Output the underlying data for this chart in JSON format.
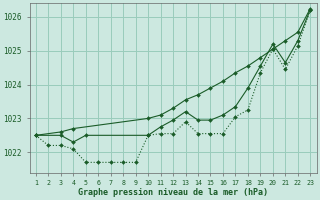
{
  "xlabel": "Graphe pression niveau de la mer (hPa)",
  "bg_color": "#cce8e0",
  "grid_color": "#99ccbb",
  "line_color": "#1a5c28",
  "xlim": [
    0.5,
    23.5
  ],
  "ylim": [
    1021.4,
    1026.4
  ],
  "yticks": [
    1022,
    1023,
    1024,
    1025,
    1026
  ],
  "xticks": [
    1,
    2,
    3,
    4,
    5,
    6,
    7,
    8,
    9,
    10,
    11,
    12,
    13,
    14,
    15,
    16,
    17,
    18,
    19,
    20,
    21,
    22,
    23
  ],
  "series": [
    {
      "x": [
        1,
        2,
        3,
        4,
        5,
        6,
        7,
        8,
        9,
        10,
        11,
        12,
        13,
        14,
        15,
        16,
        17,
        18,
        19,
        20,
        21,
        22,
        23
      ],
      "y": [
        1022.5,
        1022.2,
        1022.2,
        1022.1,
        1021.7,
        1021.7,
        1021.7,
        1021.7,
        1021.7,
        1022.5,
        1022.55,
        1022.55,
        1022.9,
        1022.55,
        1022.55,
        1022.55,
        1023.05,
        1023.25,
        1024.35,
        1025.05,
        1024.45,
        1025.15,
        1026.2
      ],
      "linestyle": "dotted",
      "marker": "D",
      "markersize": 2.0
    },
    {
      "x": [
        1,
        3,
        4,
        10,
        11,
        12,
        13,
        14,
        15,
        16,
        17,
        18,
        19,
        20,
        21,
        22,
        23
      ],
      "y": [
        1022.5,
        1022.6,
        1022.7,
        1023.0,
        1023.1,
        1023.3,
        1023.55,
        1023.7,
        1023.9,
        1024.1,
        1024.35,
        1024.55,
        1024.8,
        1025.05,
        1025.3,
        1025.55,
        1026.25
      ],
      "linestyle": "solid",
      "marker": "D",
      "markersize": 2.0
    },
    {
      "x": [
        1,
        3,
        4,
        5,
        10,
        11,
        12,
        13,
        14,
        15,
        16,
        17,
        18,
        19,
        20,
        21,
        22,
        23
      ],
      "y": [
        1022.5,
        1022.5,
        1022.3,
        1022.5,
        1022.5,
        1022.75,
        1022.95,
        1023.2,
        1022.95,
        1022.95,
        1023.1,
        1023.35,
        1023.9,
        1024.55,
        1025.2,
        1024.65,
        1025.3,
        1026.22
      ],
      "linestyle": "solid",
      "marker": "D",
      "markersize": 2.0
    }
  ]
}
